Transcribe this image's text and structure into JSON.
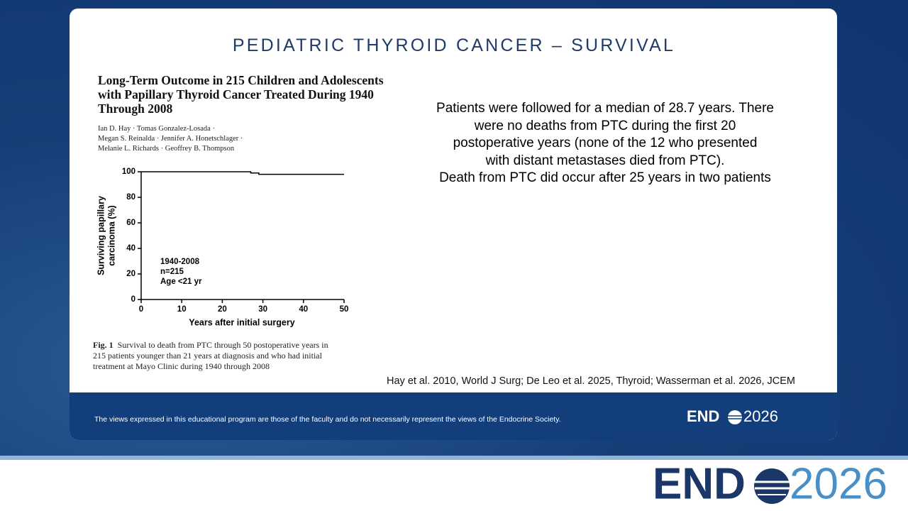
{
  "slide_title": "PEDIATRIC THYROID CANCER – SURVIVAL",
  "paper": {
    "title": [
      "Long-Term Outcome in 215 Children and Adolescents",
      "with Papillary Thyroid Cancer Treated During 1940",
      "Through 2008"
    ],
    "authors": [
      "Ian D. Hay · Tomas Gonzalez-Losada ·",
      "Megan S. Reinalda · Jennifer A. Honetschlager ·",
      "Melanie L. Richards · Geoffrey B. Thompson"
    ],
    "figure_label": "Fig. 1",
    "caption": [
      "Survival to death from PTC through 50 postoperative years in",
      "215 patients younger than 21 years at diagnosis and who had initial",
      "treatment at Mayo Clinic during 1940 through 2008"
    ]
  },
  "chart_data": {
    "type": "line",
    "ylabel": [
      "Surviving papillary",
      "carcinoma (%)"
    ],
    "xlabel": "Years after initial surgery",
    "annotation": [
      "1940-2008",
      "n=215",
      "Age <21 yr"
    ],
    "x": [
      0,
      27,
      27,
      29,
      29,
      50
    ],
    "values": [
      100,
      100,
      99,
      99,
      98,
      98
    ],
    "color": "#000000",
    "xlim": [
      0,
      50
    ],
    "xticks": [
      0,
      10,
      20,
      30,
      40,
      50
    ],
    "ylim": [
      0,
      100
    ],
    "yticks": [
      0,
      20,
      40,
      60,
      80,
      100
    ],
    "grid": false
  },
  "summary": [
    "Patients were followed for a median of 28.7 years. There",
    "were no deaths from PTC during the first 20",
    "postoperative years (none of the 12 who presented",
    "with distant metastases died from PTC).",
    "Death from PTC did occur after 25 years in two patients"
  ],
  "citation": "Hay et al. 2010, World J Surg; De Leo et al. 2025, Thyroid; Wasserman et al. 2026, JCEM",
  "disclaimer": "The views expressed in this educational program are those of the faculty and do not necessarily represent the views of the Endocrine Society.",
  "logo": {
    "left": "END",
    "right": "2026"
  }
}
